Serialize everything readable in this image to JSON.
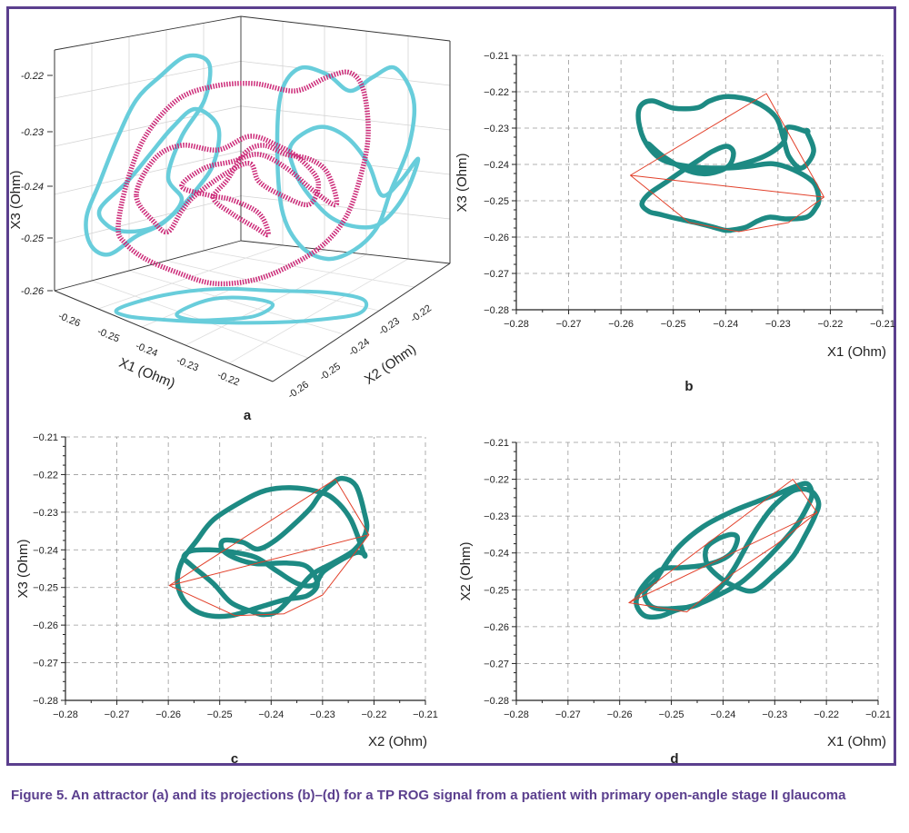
{
  "caption": "Figure 5. An attractor (a) and its projections (b)–(d) for a TP ROG signal from a patient with primary open-angle stage II glaucoma",
  "colors": {
    "frame": "#5b3f8e",
    "teal": "#1d8a83",
    "cyan": "#68cddb",
    "magenta": "#cc2a78",
    "red_line": "#e2402a",
    "grid": "#999999"
  },
  "chart_data": [
    {
      "type": "line",
      "panel": "a",
      "projection": "3d",
      "xlabel": "X1 (Ohm)",
      "ylabel": "X2 (Ohm)",
      "zlabel": "X3 (Ohm)",
      "x_ticks": [
        "-0.26",
        "-0.25",
        "-0.24",
        "-0.23",
        "-0.22"
      ],
      "y_ticks": [
        "-0.26",
        "-0.25",
        "-0.24",
        "-0.23",
        "-0.22"
      ],
      "z_ticks": [
        "-0.22",
        "-0.23",
        "-0.24",
        "-0.25",
        "-0.26"
      ],
      "series": [
        {
          "role": "attractor-3d",
          "color": "#cc2a78"
        },
        {
          "role": "wall-projections",
          "color": "#68cddb"
        }
      ]
    },
    {
      "type": "line",
      "panel": "b",
      "xlabel": "X1 (Ohm)",
      "ylabel": "X3 (Ohm)",
      "xlim": [
        -0.28,
        -0.21
      ],
      "ylim": [
        -0.28,
        -0.21
      ],
      "x_ticks": [
        "−0.28",
        "−0.27",
        "−0.26",
        "−0.25",
        "−0.24",
        "−0.23",
        "−0.22",
        "−0.21"
      ],
      "y_ticks": [
        "−0.28",
        "−0.27",
        "−0.26",
        "−0.25",
        "−0.24",
        "−0.23",
        "−0.22",
        "−0.21"
      ],
      "grid": true,
      "series": [
        {
          "role": "trajectory",
          "color": "#1d8a83",
          "x": [
            -0.2245,
            -0.2232,
            -0.2255,
            -0.2279,
            -0.229,
            -0.2305,
            -0.2345,
            -0.2395,
            -0.243,
            -0.2454,
            -0.25,
            -0.254,
            -0.2563,
            -0.2566,
            -0.2552,
            -0.252,
            -0.2462,
            -0.24,
            -0.2355,
            -0.231,
            -0.227,
            -0.2232,
            -0.2222,
            -0.2228,
            -0.2245,
            -0.2283,
            -0.2315,
            -0.2338,
            -0.2362,
            -0.239,
            -0.239,
            -0.2402,
            -0.2425,
            -0.2458,
            -0.2496,
            -0.2527,
            -0.2546,
            -0.256,
            -0.2548,
            -0.2517,
            -0.2485,
            -0.245,
            -0.2425,
            -0.2398,
            -0.2385,
            -0.2395,
            -0.2431,
            -0.247,
            -0.2517,
            -0.2547,
            -0.2545,
            -0.2505,
            -0.2444,
            -0.24,
            -0.233,
            -0.229,
            -0.2282,
            -0.2245
          ],
          "y": [
            -0.231,
            -0.2365,
            -0.241,
            -0.2378,
            -0.2326,
            -0.2268,
            -0.2227,
            -0.2213,
            -0.2225,
            -0.2244,
            -0.2245,
            -0.2225,
            -0.224,
            -0.2284,
            -0.2342,
            -0.2388,
            -0.2407,
            -0.241,
            -0.2405,
            -0.2398,
            -0.2415,
            -0.245,
            -0.2495,
            -0.252,
            -0.2545,
            -0.255,
            -0.2545,
            -0.2555,
            -0.2573,
            -0.2581,
            -0.2581,
            -0.2581,
            -0.2572,
            -0.256,
            -0.2548,
            -0.2537,
            -0.253,
            -0.251,
            -0.2483,
            -0.2452,
            -0.242,
            -0.2387,
            -0.2364,
            -0.235,
            -0.2368,
            -0.2405,
            -0.2425,
            -0.2418,
            -0.238,
            -0.2344,
            -0.2355,
            -0.2395,
            -0.2415,
            -0.241,
            -0.238,
            -0.234,
            -0.2298,
            -0.231
          ]
        },
        {
          "role": "embedding-segments",
          "color": "#e2402a",
          "x": [
            -0.2582,
            -0.2322,
            -0.2212,
            -0.2582,
            -0.2212,
            -0.228,
            -0.2375,
            -0.247,
            -0.2582
          ],
          "y": [
            -0.243,
            -0.2205,
            -0.249,
            -0.243,
            -0.249,
            -0.256,
            -0.2585,
            -0.256,
            -0.243
          ]
        }
      ]
    },
    {
      "type": "line",
      "panel": "c",
      "xlabel": "X2 (Ohm)",
      "ylabel": "X3 (Ohm)",
      "xlim": [
        -0.28,
        -0.21
      ],
      "ylim": [
        -0.28,
        -0.21
      ],
      "x_ticks": [
        "−0.28",
        "−0.27",
        "−0.26",
        "−0.25",
        "−0.24",
        "−0.23",
        "−0.22",
        "−0.21"
      ],
      "y_ticks": [
        "−0.28",
        "−0.27",
        "−0.26",
        "−0.25",
        "−0.24",
        "−0.23",
        "−0.22",
        "−0.21"
      ],
      "grid": true,
      "series": [
        {
          "role": "trajectory",
          "color": "#1d8a83",
          "x": [
            -0.222,
            -0.2245,
            -0.2278,
            -0.231,
            -0.2362,
            -0.241,
            -0.2455,
            -0.2512,
            -0.2545,
            -0.2574,
            -0.2582,
            -0.2565,
            -0.253,
            -0.248,
            -0.2422,
            -0.2372,
            -0.233,
            -0.231,
            -0.233,
            -0.237,
            -0.2428,
            -0.2468,
            -0.2495,
            -0.2492,
            -0.2455,
            -0.2426,
            -0.239,
            -0.2348,
            -0.2322,
            -0.2306,
            -0.2282,
            -0.2262,
            -0.2235,
            -0.2219,
            -0.2215,
            -0.2238,
            -0.228,
            -0.2318,
            -0.2345,
            -0.2385,
            -0.2412,
            -0.2435,
            -0.2478,
            -0.2512,
            -0.2556,
            -0.257,
            -0.2556,
            -0.252,
            -0.248,
            -0.243,
            -0.2388,
            -0.2348,
            -0.2316,
            -0.2296,
            -0.224,
            -0.222
          ],
          "y": [
            -0.241,
            -0.232,
            -0.2265,
            -0.2245,
            -0.2235,
            -0.2242,
            -0.227,
            -0.232,
            -0.2376,
            -0.2432,
            -0.249,
            -0.2542,
            -0.2572,
            -0.2575,
            -0.2552,
            -0.2532,
            -0.2522,
            -0.249,
            -0.2445,
            -0.2435,
            -0.2437,
            -0.2423,
            -0.2399,
            -0.2375,
            -0.238,
            -0.2398,
            -0.2373,
            -0.2323,
            -0.2287,
            -0.2256,
            -0.2225,
            -0.221,
            -0.223,
            -0.23,
            -0.235,
            -0.24,
            -0.2435,
            -0.2463,
            -0.2502,
            -0.256,
            -0.2572,
            -0.2565,
            -0.254,
            -0.249,
            -0.244,
            -0.242,
            -0.2403,
            -0.24,
            -0.2405,
            -0.242,
            -0.2457,
            -0.249,
            -0.2493,
            -0.2455,
            -0.241,
            -0.241
          ]
        },
        {
          "role": "embedding-segments",
          "color": "#e2402a",
          "x": [
            -0.2598,
            -0.2275,
            -0.221,
            -0.2598,
            -0.221,
            -0.23,
            -0.2375,
            -0.247,
            -0.2598
          ],
          "y": [
            -0.2495,
            -0.2212,
            -0.236,
            -0.2495,
            -0.236,
            -0.252,
            -0.257,
            -0.2575,
            -0.2495
          ]
        }
      ]
    },
    {
      "type": "line",
      "panel": "d",
      "xlabel": "X1 (Ohm)",
      "ylabel": "X2 (Ohm)",
      "xlim": [
        -0.28,
        -0.21
      ],
      "ylim": [
        -0.28,
        -0.21
      ],
      "x_ticks": [
        "−0.28",
        "−0.27",
        "−0.26",
        "−0.25",
        "−0.24",
        "−0.23",
        "−0.22",
        "−0.21"
      ],
      "y_ticks": [
        "−0.28",
        "−0.27",
        "−0.26",
        "−0.25",
        "−0.24",
        "−0.23",
        "−0.22",
        "−0.21"
      ],
      "grid": true,
      "series": [
        {
          "role": "trajectory",
          "color": "#1d8a83",
          "x": [
            -0.253,
            -0.249,
            -0.244,
            -0.2385,
            -0.2335,
            -0.2295,
            -0.2252,
            -0.2235,
            -0.2228,
            -0.2238,
            -0.2258,
            -0.229,
            -0.2325,
            -0.2365,
            -0.241,
            -0.245,
            -0.249,
            -0.2522,
            -0.2552,
            -0.2568,
            -0.2555,
            -0.252,
            -0.248,
            -0.244,
            -0.2405,
            -0.2382,
            -0.2372,
            -0.2385,
            -0.2414,
            -0.2433,
            -0.243,
            -0.2405,
            -0.2375,
            -0.234,
            -0.23,
            -0.2265,
            -0.224,
            -0.2223,
            -0.2215,
            -0.223,
            -0.2262,
            -0.23,
            -0.2328,
            -0.2352,
            -0.238,
            -0.241,
            -0.2448,
            -0.249,
            -0.2535,
            -0.2552,
            -0.253
          ],
          "y": [
            -0.2473,
            -0.239,
            -0.233,
            -0.2289,
            -0.2261,
            -0.224,
            -0.2215,
            -0.2214,
            -0.2243,
            -0.2278,
            -0.2325,
            -0.2378,
            -0.2429,
            -0.248,
            -0.2515,
            -0.254,
            -0.2555,
            -0.2572,
            -0.257,
            -0.2535,
            -0.249,
            -0.2445,
            -0.244,
            -0.2434,
            -0.242,
            -0.2397,
            -0.236,
            -0.235,
            -0.2365,
            -0.239,
            -0.2432,
            -0.2468,
            -0.2492,
            -0.2502,
            -0.2458,
            -0.241,
            -0.235,
            -0.2302,
            -0.2265,
            -0.2232,
            -0.223,
            -0.227,
            -0.232,
            -0.2375,
            -0.2445,
            -0.25,
            -0.254,
            -0.255,
            -0.2548,
            -0.251,
            -0.2473
          ]
        },
        {
          "role": "embedding-segments",
          "color": "#e2402a",
          "x": [
            -0.2582,
            -0.2265,
            -0.2218,
            -0.2582,
            -0.2218,
            -0.23,
            -0.238,
            -0.247,
            -0.2582
          ],
          "y": [
            -0.2535,
            -0.22,
            -0.229,
            -0.2535,
            -0.229,
            -0.238,
            -0.2455,
            -0.256,
            -0.2535
          ]
        }
      ]
    }
  ],
  "panels_2d": [
    {
      "label": "b"
    },
    {
      "label": "c"
    },
    {
      "label": "d"
    }
  ],
  "panel_a": {
    "label": "a"
  }
}
